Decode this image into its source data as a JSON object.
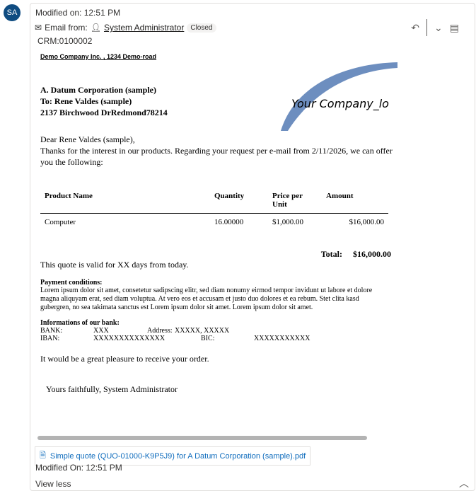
{
  "avatar": "SA",
  "modified": "Modified on: 12:51 PM",
  "email_from_label": "Email from:",
  "sender": "System Administrator",
  "status": "Closed",
  "crm": "CRM:0100002",
  "doc": {
    "company_address": "Demo Company Inc. , 1234 Demo-road",
    "logo_text": "Your Company_lo",
    "recipient": [
      "A. Datum Corporation (sample)",
      "To:  Rene Valdes (sample)",
      "2137 Birchwood DrRedmond78214"
    ],
    "greeting": "Dear Rene Valdes (sample),",
    "intro": "Thanks for the interest in our products. Regarding your request per e-mail from 2/11/2026, we can offer you the following:",
    "headers": [
      "Product Name",
      "Quantity",
      "Price per Unit",
      "Amount"
    ],
    "rows": [
      [
        "Computer",
        "16.00000",
        "$1,000.00",
        "$16,000.00"
      ]
    ],
    "total_label": "Total:",
    "total": "$16,000.00",
    "valid": "This quote is valid for XX days from today.",
    "payment_title": "Payment conditions:",
    "payment_text": "Lorem ipsum dolor sit amet, consetetur sadipscing elitr, sed diam nonumy eirmod tempor invidunt ut labore et dolore magna aliquyam erat, sed diam voluptua. At vero eos et accusam et justo duo dolores et ea rebum. Stet clita kasd gubergren, no sea takimata sanctus est Lorem ipsum dolor sit amet. Lorem ipsum dolor sit amet.",
    "bank_title": "Informations of our bank:",
    "bank_label": "BANK:",
    "bank": "XXX",
    "address_label": "Address:",
    "address": "XXXXX, XXXXX",
    "iban_label": "IBAN:",
    "iban": "XXXXXXXXXXXXXX",
    "bic_label": "BIC:",
    "bic": "XXXXXXXXXXX",
    "pleasure": "It would be a great pleasure to receive your order.",
    "closing": "Yours faithfully, System Administrator"
  },
  "attachment": "Simple quote (QUO-01000-K9P5J9) for A Datum Corporation (sample).pdf",
  "modified_on": "Modified On: 12:51 PM",
  "view_less": "View less"
}
